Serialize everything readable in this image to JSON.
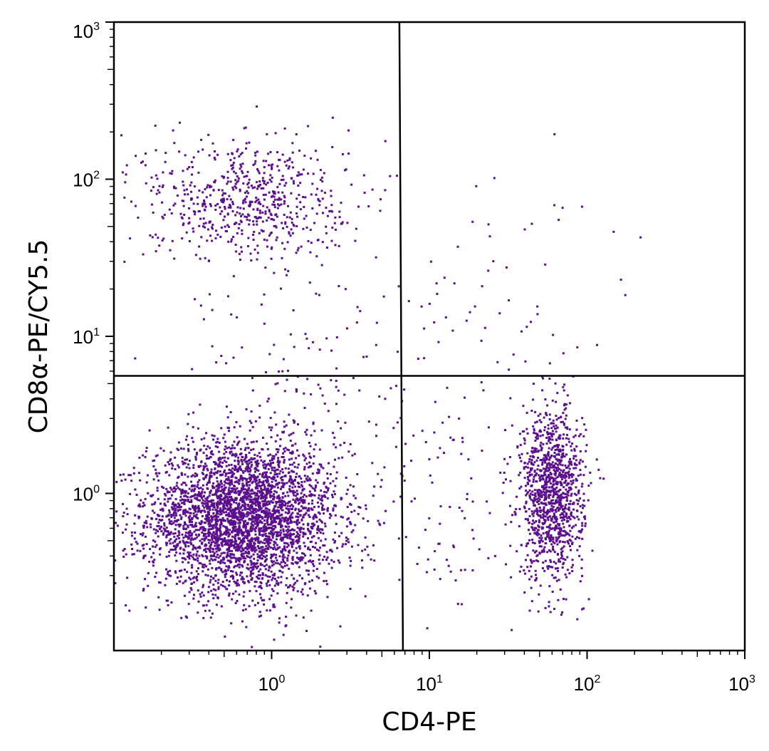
{
  "chart_data": {
    "type": "scatter",
    "title": "",
    "xlabel": "CD4-PE",
    "ylabel": "CD8α-PE/CY5.5",
    "x_scale": "log",
    "y_scale": "log",
    "xlim": [
      0.1,
      1000
    ],
    "ylim": [
      0.1,
      1000
    ],
    "x_ticks": [
      {
        "base": "10",
        "exp": "0",
        "value": 1
      },
      {
        "base": "10",
        "exp": "1",
        "value": 10
      },
      {
        "base": "10",
        "exp": "2",
        "value": 100
      },
      {
        "base": "10",
        "exp": "3",
        "value": 1000
      }
    ],
    "y_ticks": [
      {
        "base": "10",
        "exp": "0",
        "value": 1
      },
      {
        "base": "10",
        "exp": "1",
        "value": 10
      },
      {
        "base": "10",
        "exp": "2",
        "value": 100
      },
      {
        "base": "10",
        "exp": "3",
        "value": 1000
      }
    ],
    "gates": {
      "x": 6.8,
      "y": 5.6
    },
    "grid": false,
    "point_color": "#5b0f8c",
    "populations": [
      {
        "cx": 0.65,
        "cy": 0.7,
        "sx": 0.3,
        "sy": 0.24,
        "n": 3600
      },
      {
        "cx": 60,
        "cy": 1.0,
        "sx": 0.1,
        "sy": 0.27,
        "n": 1150
      },
      {
        "cx": 0.7,
        "cy": 75,
        "sx": 0.32,
        "sy": 0.2,
        "n": 650
      },
      {
        "cx": 2.0,
        "cy": 3.0,
        "sx": 0.55,
        "sy": 0.55,
        "n": 220
      },
      {
        "cx": 25,
        "cy": 15,
        "sx": 0.45,
        "sy": 0.55,
        "n": 60
      },
      {
        "cx": 15,
        "cy": 0.6,
        "sx": 0.3,
        "sy": 0.35,
        "n": 60
      }
    ]
  }
}
